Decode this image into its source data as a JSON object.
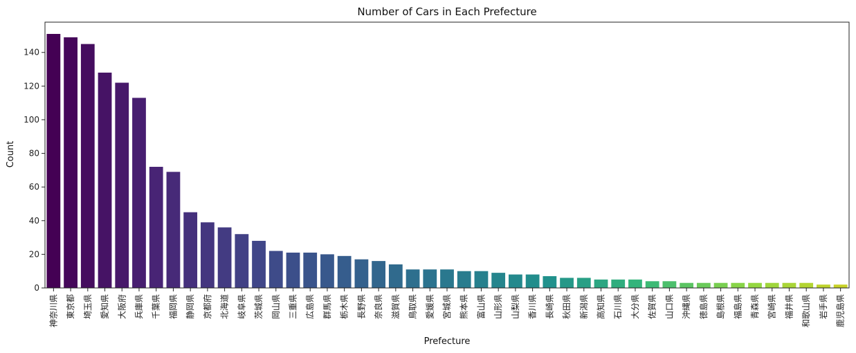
{
  "chart_data": {
    "type": "bar",
    "title": "Number of Cars in Each Prefecture",
    "xlabel": "Prefecture",
    "ylabel": "Count",
    "ylim": [
      0,
      158
    ],
    "yticks": [
      0,
      20,
      40,
      60,
      80,
      100,
      120,
      140
    ],
    "grid": false,
    "colormap": "viridis",
    "categories": [
      "神奈川県",
      "東京都",
      "埼玉県",
      "愛知県",
      "大阪府",
      "兵庫県",
      "千葉県",
      "福岡県",
      "静岡県",
      "京都府",
      "北海道",
      "岐阜県",
      "茨城県",
      "岡山県",
      "三重県",
      "広島県",
      "群馬県",
      "栃木県",
      "長野県",
      "奈良県",
      "滋賀県",
      "鳥取県",
      "愛媛県",
      "宮城県",
      "熊本県",
      "富山県",
      "山形県",
      "山梨県",
      "香川県",
      "長崎県",
      "秋田県",
      "新潟県",
      "高知県",
      "石川県",
      "大分県",
      "佐賀県",
      "山口県",
      "沖縄県",
      "徳島県",
      "島根県",
      "福島県",
      "青森県",
      "宮崎県",
      "福井県",
      "和歌山県",
      "岩手県",
      "鹿児島県"
    ],
    "values": [
      151,
      149,
      145,
      128,
      122,
      113,
      72,
      69,
      45,
      39,
      36,
      32,
      28,
      22,
      21,
      21,
      20,
      19,
      17,
      16,
      14,
      11,
      11,
      11,
      10,
      10,
      9,
      8,
      8,
      7,
      6,
      6,
      5,
      5,
      5,
      4,
      4,
      3,
      3,
      3,
      3,
      3,
      3,
      3,
      3,
      2,
      2
    ]
  }
}
